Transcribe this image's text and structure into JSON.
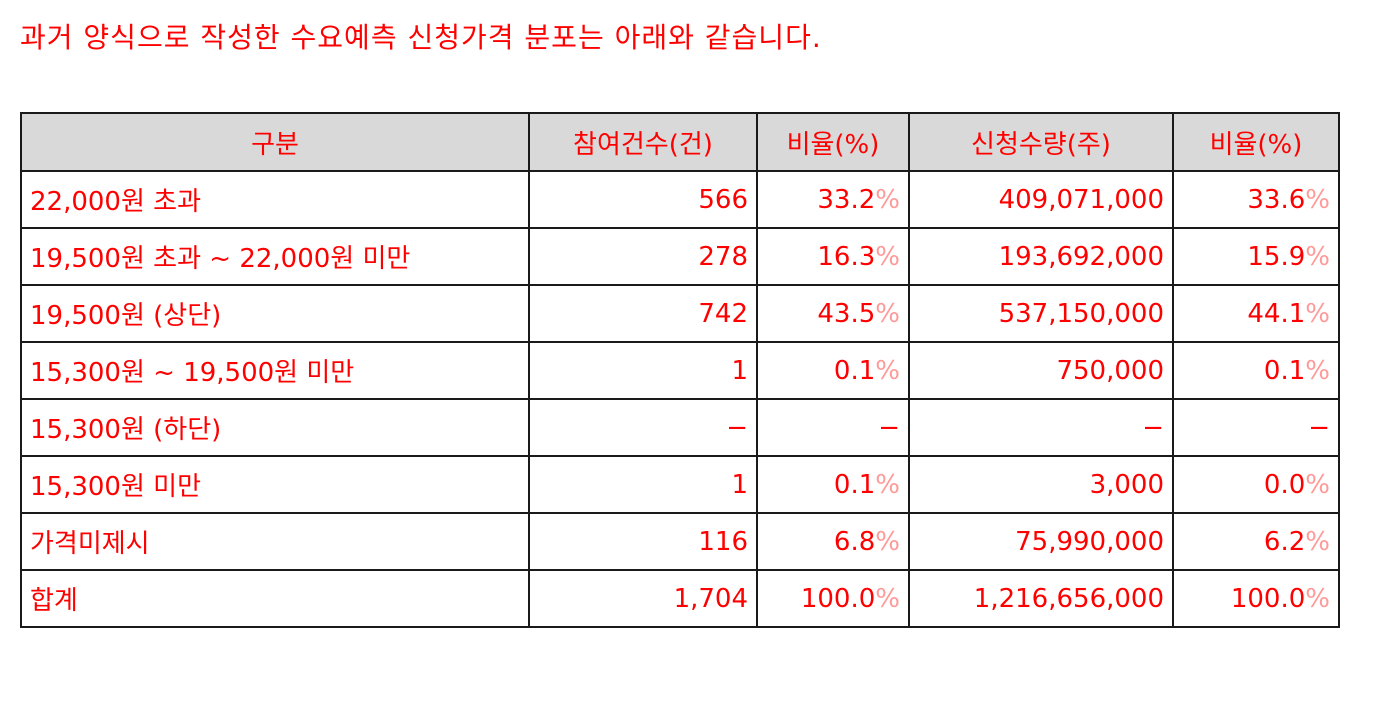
{
  "intro": "과거 양식으로 작성한 수요예측 신청가격 분포는 아래와 같습니다.",
  "table": {
    "headers": [
      "구분",
      "참여건수(건)",
      "비율(%)",
      "신청수량(주)",
      "비율(%)"
    ],
    "rows": [
      {
        "label": "22,000원 초과",
        "count": "566",
        "ratio1": "33.2",
        "ratio1_sign": "%",
        "qty": "409,071,000",
        "ratio2": "33.6",
        "ratio2_sign": "%"
      },
      {
        "label": "19,500원 초과 ~ 22,000원 미만",
        "count": "278",
        "ratio1": "16.3",
        "ratio1_sign": "%",
        "qty": "193,692,000",
        "ratio2": "15.9",
        "ratio2_sign": "%"
      },
      {
        "label": "19,500원 (상단)",
        "count": "742",
        "ratio1": "43.5",
        "ratio1_sign": "%",
        "qty": "537,150,000",
        "ratio2": "44.1",
        "ratio2_sign": "%"
      },
      {
        "label": "15,300원 ~ 19,500원 미만",
        "count": "1",
        "ratio1": "0.1",
        "ratio1_sign": "%",
        "qty": "750,000",
        "ratio2": "0.1",
        "ratio2_sign": "%"
      },
      {
        "label": "15,300원 (하단)",
        "count": "−",
        "ratio1": "−",
        "ratio1_sign": "",
        "qty": "−",
        "ratio2": "−",
        "ratio2_sign": ""
      },
      {
        "label": "15,300원 미만",
        "count": "1",
        "ratio1": "0.1",
        "ratio1_sign": "%",
        "qty": "3,000",
        "ratio2": "0.0",
        "ratio2_sign": "%"
      },
      {
        "label": "가격미제시",
        "count": "116",
        "ratio1": "6.8",
        "ratio1_sign": "%",
        "qty": "75,990,000",
        "ratio2": "6.2",
        "ratio2_sign": "%"
      },
      {
        "label": "합계",
        "count": "1,704",
        "ratio1": "100.0",
        "ratio1_sign": "%",
        "qty": "1,216,656,000",
        "ratio2": "100.0",
        "ratio2_sign": "%"
      }
    ]
  },
  "colors": {
    "text": "#ff0000",
    "percent_sign": "#ff9a9a",
    "header_bg": "#d9d9d9",
    "border": "#1a1a1a"
  }
}
